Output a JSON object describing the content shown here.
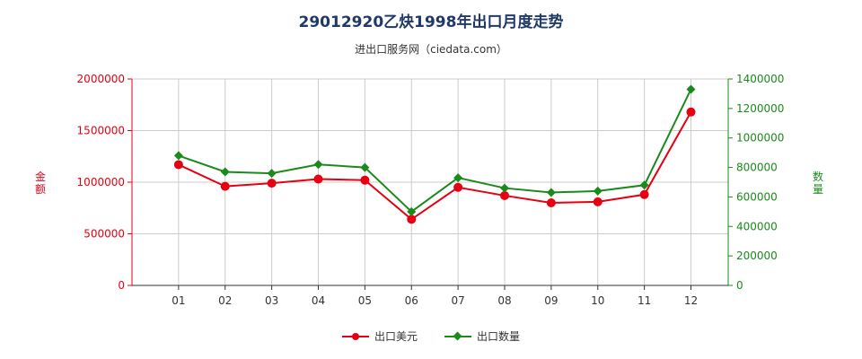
{
  "header": {
    "title": "29012920乙炔1998年出口月度走势",
    "subtitle": "进出口服务网（ciedata.com）"
  },
  "colors": {
    "usd": "#e60012",
    "qty": "#1a8a1a",
    "grid": "#cccccc"
  },
  "chart_data": {
    "type": "line",
    "title": "29012920乙炔1998年出口月度走势",
    "subtitle": "进出口服务网（ciedata.com）",
    "categories": [
      "01",
      "02",
      "03",
      "04",
      "05",
      "06",
      "07",
      "08",
      "09",
      "10",
      "11",
      "12"
    ],
    "y_left": {
      "label": "金额",
      "range": [
        0,
        2000000
      ],
      "ticks": [
        "2000000",
        "1500000",
        "1000000",
        "500000",
        "0"
      ]
    },
    "y_right": {
      "label": "数量",
      "range": [
        0,
        1400000
      ],
      "ticks": [
        "1400000",
        "1200000",
        "1000000",
        "800000",
        "600000",
        "400000",
        "200000",
        "0"
      ]
    },
    "series": [
      {
        "name": "出口美元",
        "axis": "left",
        "values": [
          1170000,
          960000,
          990000,
          1030000,
          1020000,
          640000,
          950000,
          870000,
          800000,
          810000,
          880000,
          1680000
        ]
      },
      {
        "name": "出口数量",
        "axis": "right",
        "values": [
          880000,
          770000,
          760000,
          820000,
          800000,
          500000,
          730000,
          660000,
          630000,
          640000,
          680000,
          1330000
        ]
      }
    ],
    "grid": true,
    "legend_position": "bottom-center"
  }
}
